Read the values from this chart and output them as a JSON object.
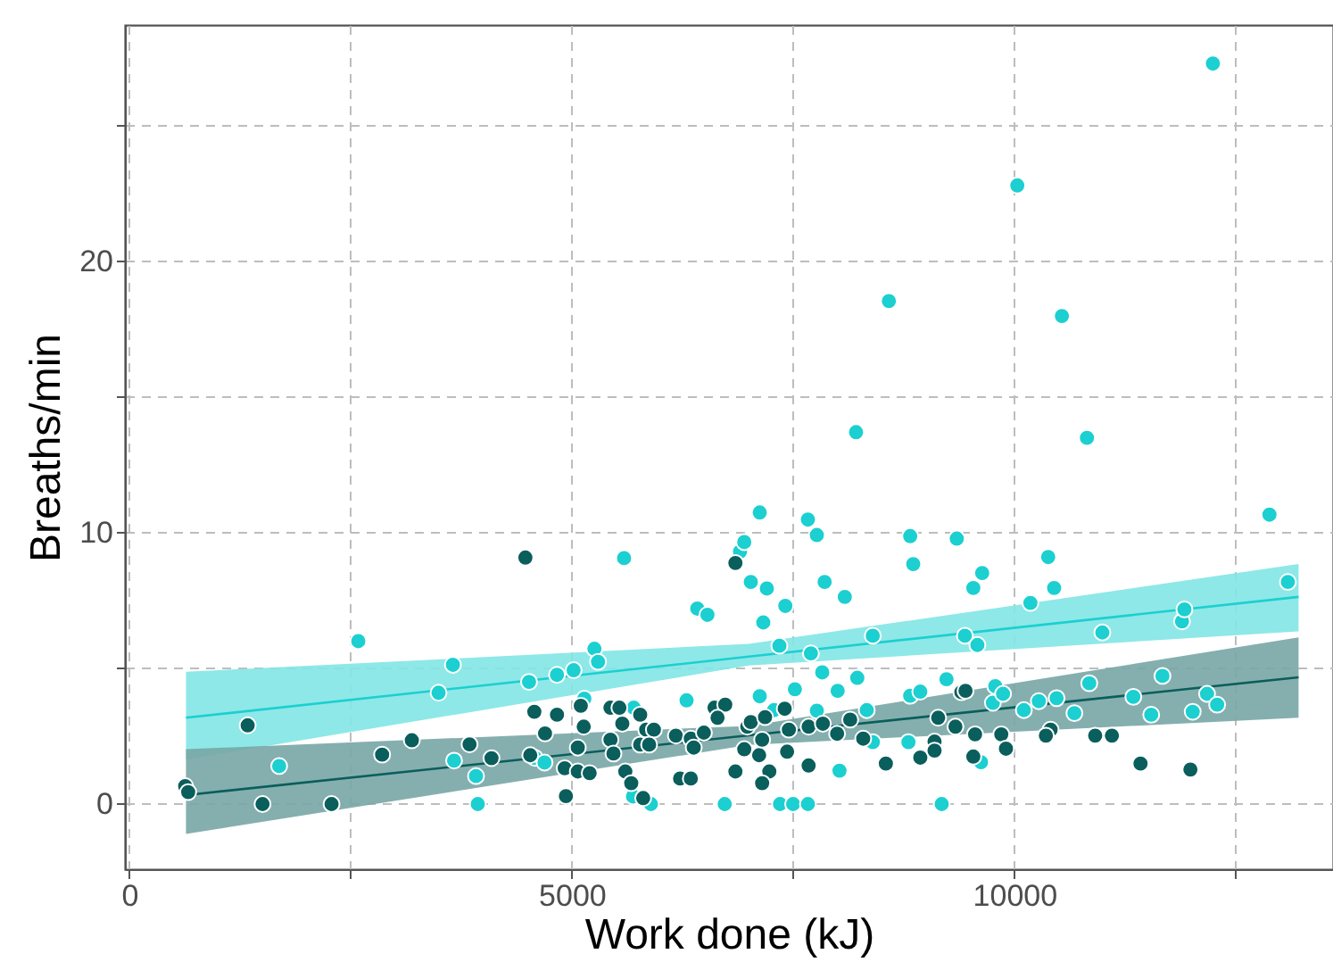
{
  "chart_data": {
    "type": "scatter",
    "xlabel": "Work done (kJ)",
    "ylabel": "Breaths/min",
    "xlim": [
      -50,
      13600
    ],
    "ylim": [
      -2.4,
      28.7
    ],
    "xticks": [
      0,
      {
        "value": 2500,
        "label": null
      },
      5000,
      {
        "value": 7500,
        "label": null
      },
      10000,
      {
        "value": 12500,
        "label": null
      }
    ],
    "yticks": [
      0,
      {
        "value": 5,
        "label": null
      },
      10,
      {
        "value": 15,
        "label": null
      },
      20,
      {
        "value": 25,
        "label": null
      }
    ],
    "grid": true,
    "marker": "circle",
    "series": [
      {
        "type": "line",
        "marker": "none",
        "color": "#1ccfd0",
        "x": [
          640,
          7000,
          13211
        ],
        "values": [
          3.18,
          5.43,
          7.63
        ],
        "lower": [
          1.64,
          5.1,
          6.36
        ],
        "upper": [
          4.87,
          5.9,
          8.84
        ]
      },
      {
        "type": "line",
        "marker": "none",
        "color": "#0a5e5c",
        "x": [
          640,
          7000,
          13211
        ],
        "values": [
          0.33,
          2.53,
          4.67
        ],
        "lower": [
          -1.1,
          2.18,
          3.18
        ],
        "upper": [
          2.02,
          2.88,
          6.14
        ]
      },
      {
        "color": "#1ccfd0",
        "x": [
          1693,
          2587,
          3494,
          3656,
          3669,
          3917,
          3937,
          4516,
          4583,
          4691,
          4832,
          5020,
          5255,
          5296,
          5141,
          5590,
          5699,
          5691,
          5893,
          6296,
          6417,
          6532,
          6727,
          6900,
          6948,
          7022,
          7123,
          7163,
          7203,
          7123,
          7284,
          7345,
          7412,
          7352,
          7500,
          7520,
          7667,
          7667,
          7701,
          7768,
          7768,
          7829,
          7856,
          8003,
          8024,
          8084,
          8211,
          8225,
          8332,
          8400,
          8400,
          8582,
          8803,
          8823,
          8823,
          8857,
          8937,
          9179,
          9233,
          9349,
          9441,
          9536,
          9582,
          9623,
          9636,
          9757,
          9784,
          9872,
          10033,
          10107,
          10181,
          10276,
          10382,
          10449,
          10477,
          10537,
          10678,
          10820,
          10846,
          10994,
          11344,
          11546,
          11673,
          11894,
          11921,
          12015,
          12177,
          12243,
          12291,
          12882,
          13090
        ],
        "values": [
          1.4,
          6.0,
          4.1,
          5.13,
          1.6,
          1.03,
          0,
          4.5,
          1.7,
          1.53,
          4.76,
          4.93,
          5.72,
          5.24,
          3.88,
          9.06,
          3.55,
          0.28,
          0,
          3.82,
          7.2,
          6.97,
          0,
          9.3,
          9.65,
          8.18,
          10.74,
          6.69,
          7.94,
          3.97,
          3.46,
          5.83,
          7.3,
          0,
          0,
          4.23,
          10.48,
          0,
          5.55,
          9.91,
          3.44,
          4.85,
          8.18,
          4.17,
          1.23,
          7.63,
          13.7,
          4.65,
          3.46,
          6.2,
          2.28,
          18.53,
          2.28,
          9.87,
          3.99,
          8.84,
          4.14,
          0,
          4.6,
          9.78,
          6.2,
          7.96,
          5.86,
          1.54,
          8.51,
          3.73,
          4.34,
          4.06,
          22.79,
          3.46,
          7.41,
          3.79,
          9.1,
          7.96,
          3.9,
          17.98,
          3.35,
          13.49,
          4.45,
          6.32,
          3.95,
          3.29,
          4.72,
          6.73,
          7.17,
          3.4,
          4.06,
          27.28,
          3.66,
          10.66,
          8.18
        ]
      },
      {
        "color": "#0a5e5c",
        "x": [
          631,
          665,
          1337,
          1505,
          2285,
          2856,
          3192,
          3844,
          4092,
          4475,
          4530,
          4576,
          4697,
          4832,
          5101,
          5134,
          5067,
          4919,
          5067,
          5201,
          4933,
          5436,
          5537,
          5570,
          5436,
          5470,
          5604,
          5671,
          5772,
          5840,
          5927,
          5772,
          5873,
          5806,
          6175,
          6344,
          6377,
          6223,
          6344,
          6492,
          6612,
          6733,
          6646,
          6848,
          6848,
          6982,
          7022,
          6948,
          7116,
          7150,
          7231,
          7150,
          7183,
          7405,
          7452,
          7432,
          7675,
          7675,
          7836,
          7997,
          8145,
          8292,
          8548,
          8937,
          9098,
          9139,
          9334,
          9401,
          9448,
          9098,
          9556,
          9852,
          9905,
          9536,
          10409,
          10356,
          10913,
          11102,
          11425,
          11989
        ],
        "values": [
          0.66,
          0.44,
          2.9,
          0,
          0,
          1.82,
          2.35,
          2.2,
          1.69,
          9.08,
          1.8,
          3.4,
          2.6,
          3.29,
          3.62,
          2.85,
          2.08,
          1.32,
          1.2,
          1.14,
          0.29,
          3.55,
          3.55,
          2.96,
          2.37,
          1.86,
          1.2,
          0.77,
          3.29,
          2.74,
          2.74,
          2.19,
          2.19,
          0.22,
          2.52,
          2.41,
          2.08,
          0.94,
          0.94,
          2.63,
          3.55,
          3.66,
          3.18,
          8.88,
          1.2,
          2.85,
          3.02,
          2.02,
          1.8,
          2.37,
          1.2,
          0.77,
          3.2,
          3.51,
          2.74,
          1.93,
          2.85,
          1.42,
          2.96,
          2.59,
          3.11,
          2.41,
          1.49,
          1.71,
          2.3,
          3.18,
          2.85,
          4.12,
          4.17,
          1.97,
          2.57,
          2.57,
          2.04,
          1.75,
          2.74,
          2.52,
          2.52,
          2.52,
          1.49,
          1.27
        ]
      }
    ]
  }
}
